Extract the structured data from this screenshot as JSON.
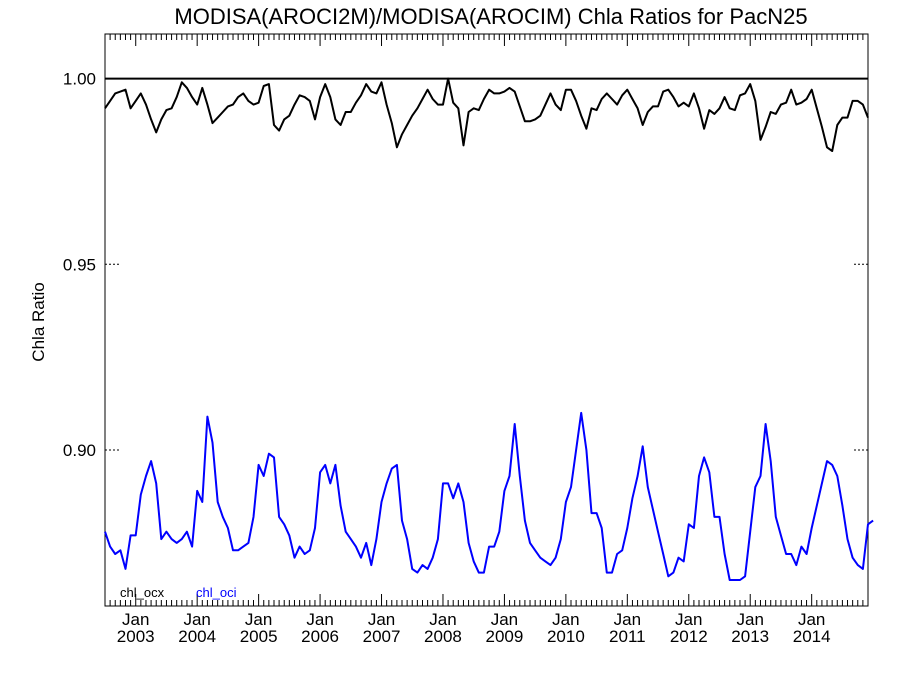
{
  "chart_data": {
    "type": "line",
    "title": "MODISA(AROCI2M)/MODISA(AROCIM)  Chla Ratios for PacN25",
    "xlabel": "",
    "ylabel": "Chla Ratio",
    "xlim": [
      "2002-07",
      "2014-12"
    ],
    "ylim": [
      0.858,
      1.012
    ],
    "y_ticks": [
      {
        "value": 0.9,
        "label": "0.90"
      },
      {
        "value": 0.95,
        "label": "0.95"
      },
      {
        "value": 1.0,
        "label": "1.00"
      }
    ],
    "x_ticks": [
      {
        "month": "Jan",
        "year": "2003",
        "date": "2003-01"
      },
      {
        "month": "Jan",
        "year": "2004",
        "date": "2004-01"
      },
      {
        "month": "Jan",
        "year": "2005",
        "date": "2005-01"
      },
      {
        "month": "Jan",
        "year": "2006",
        "date": "2006-01"
      },
      {
        "month": "Jan",
        "year": "2007",
        "date": "2007-01"
      },
      {
        "month": "Jan",
        "year": "2008",
        "date": "2008-01"
      },
      {
        "month": "Jan",
        "year": "2009",
        "date": "2009-01"
      },
      {
        "month": "Jan",
        "year": "2010",
        "date": "2010-01"
      },
      {
        "month": "Jan",
        "year": "2011",
        "date": "2011-01"
      },
      {
        "month": "Jan",
        "year": "2012",
        "date": "2012-01"
      },
      {
        "month": "Jan",
        "year": "2013",
        "date": "2013-01"
      },
      {
        "month": "Jan",
        "year": "2014",
        "date": "2014-01"
      }
    ],
    "reference_line": 1.0,
    "grid": false,
    "legend_position": "bottom-left",
    "series": [
      {
        "name": "chl_ocx",
        "color": "#000000",
        "start": "2002-07",
        "values": [
          0.992,
          0.994,
          0.996,
          0.9965,
          0.997,
          0.992,
          0.994,
          0.996,
          0.993,
          0.989,
          0.9855,
          0.989,
          0.9915,
          0.992,
          0.995,
          0.999,
          0.9975,
          0.995,
          0.993,
          0.9975,
          0.993,
          0.988,
          0.9895,
          0.991,
          0.9925,
          0.993,
          0.995,
          0.996,
          0.994,
          0.993,
          0.9935,
          0.998,
          0.9985,
          0.9875,
          0.986,
          0.989,
          0.99,
          0.993,
          0.9955,
          0.995,
          0.994,
          0.989,
          0.995,
          0.9985,
          0.995,
          0.989,
          0.9875,
          0.991,
          0.991,
          0.9935,
          0.9955,
          0.9985,
          0.9965,
          0.996,
          0.999,
          0.993,
          0.988,
          0.9815,
          0.985,
          0.9875,
          0.99,
          0.992,
          0.9945,
          0.997,
          0.9945,
          0.993,
          0.993,
          1.0,
          0.9935,
          0.992,
          0.982,
          0.991,
          0.992,
          0.9915,
          0.9945,
          0.997,
          0.996,
          0.996,
          0.9965,
          0.9975,
          0.9965,
          0.9925,
          0.9885,
          0.9885,
          0.989,
          0.99,
          0.993,
          0.996,
          0.993,
          0.9915,
          0.997,
          0.997,
          0.994,
          0.99,
          0.9865,
          0.992,
          0.9915,
          0.9945,
          0.996,
          0.9945,
          0.993,
          0.9955,
          0.997,
          0.9945,
          0.992,
          0.9875,
          0.991,
          0.9925,
          0.9925,
          0.9965,
          0.997,
          0.995,
          0.9925,
          0.9935,
          0.9925,
          0.996,
          0.992,
          0.9865,
          0.9915,
          0.9905,
          0.992,
          0.995,
          0.992,
          0.9915,
          0.9955,
          0.996,
          0.9985,
          0.994,
          0.9835,
          0.987,
          0.991,
          0.9905,
          0.993,
          0.9935,
          0.997,
          0.993,
          0.9935,
          0.9945,
          0.997,
          0.992,
          0.987,
          0.9815,
          0.9805,
          0.9875,
          0.9895,
          0.9895,
          0.994,
          0.994,
          0.993,
          0.9895
        ]
      },
      {
        "name": "chl_oci",
        "color": "#0000ff",
        "start": "2002-07",
        "values": [
          0.878,
          0.874,
          0.872,
          0.873,
          0.868,
          0.877,
          0.877,
          0.888,
          0.893,
          0.897,
          0.891,
          0.876,
          0.878,
          0.876,
          0.875,
          0.876,
          0.878,
          0.874,
          0.889,
          0.886,
          0.909,
          0.902,
          0.886,
          0.882,
          0.879,
          0.873,
          0.873,
          0.874,
          0.875,
          0.882,
          0.896,
          0.893,
          0.899,
          0.898,
          0.882,
          0.88,
          0.877,
          0.871,
          0.874,
          0.872,
          0.873,
          0.879,
          0.894,
          0.896,
          0.891,
          0.896,
          0.885,
          0.878,
          0.876,
          0.874,
          0.871,
          0.875,
          0.869,
          0.876,
          0.886,
          0.891,
          0.895,
          0.896,
          0.881,
          0.876,
          0.868,
          0.867,
          0.869,
          0.868,
          0.871,
          0.876,
          0.891,
          0.891,
          0.887,
          0.891,
          0.886,
          0.875,
          0.87,
          0.867,
          0.867,
          0.874,
          0.874,
          0.878,
          0.889,
          0.893,
          0.907,
          0.893,
          0.881,
          0.875,
          0.873,
          0.871,
          0.87,
          0.869,
          0.871,
          0.876,
          0.886,
          0.89,
          0.9,
          0.91,
          0.9,
          0.883,
          0.883,
          0.879,
          0.867,
          0.867,
          0.872,
          0.873,
          0.879,
          0.887,
          0.893,
          0.901,
          0.89,
          0.884,
          0.878,
          0.872,
          0.866,
          0.867,
          0.871,
          0.87,
          0.88,
          0.879,
          0.893,
          0.898,
          0.894,
          0.882,
          0.882,
          0.872,
          0.865,
          0.865,
          0.865,
          0.866,
          0.878,
          0.89,
          0.893,
          0.907,
          0.897,
          0.882,
          0.877,
          0.872,
          0.872,
          0.869,
          0.874,
          0.872,
          0.879,
          0.885,
          0.891,
          0.897,
          0.896,
          0.893,
          0.885,
          0.876,
          0.871,
          0.869,
          0.868,
          0.88,
          0.881
        ]
      }
    ]
  }
}
